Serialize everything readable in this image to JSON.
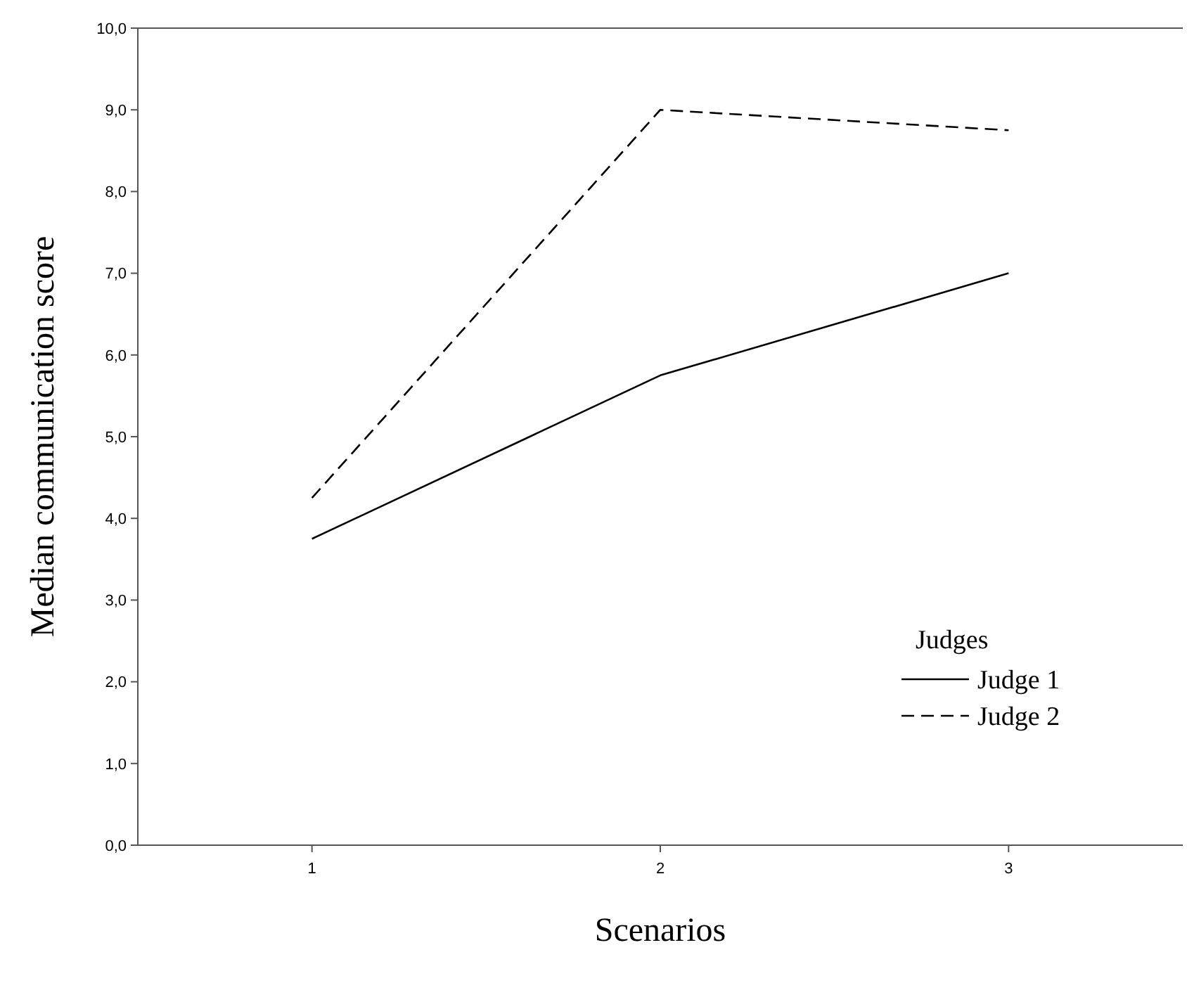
{
  "chart_data": {
    "type": "line",
    "xlabel": "Scenarios",
    "ylabel": "Median communication score",
    "categories": [
      "1",
      "2",
      "3"
    ],
    "ylim": [
      0,
      10
    ],
    "yticks": [
      {
        "value": 0,
        "label": "0,0"
      },
      {
        "value": 1,
        "label": "1,0"
      },
      {
        "value": 2,
        "label": "2,0"
      },
      {
        "value": 3,
        "label": "3,0"
      },
      {
        "value": 4,
        "label": "4,0"
      },
      {
        "value": 5,
        "label": "5,0"
      },
      {
        "value": 6,
        "label": "6,0"
      },
      {
        "value": 7,
        "label": "7,0"
      },
      {
        "value": 8,
        "label": "8,0"
      },
      {
        "value": 9,
        "label": "9,0"
      },
      {
        "value": 10,
        "label": "10,0"
      }
    ],
    "legend": "bottom right",
    "legend_title": "Judges",
    "grid": false,
    "marker": "none",
    "series": [
      {
        "name": "Judge 1",
        "color": "#000000",
        "values": [
          3.75,
          5.75,
          7.0
        ],
        "line_style": "solid"
      },
      {
        "name": "Judge 2",
        "color": "#000000",
        "values": [
          4.25,
          9.0,
          8.75
        ],
        "line_style": "dashed"
      }
    ]
  }
}
